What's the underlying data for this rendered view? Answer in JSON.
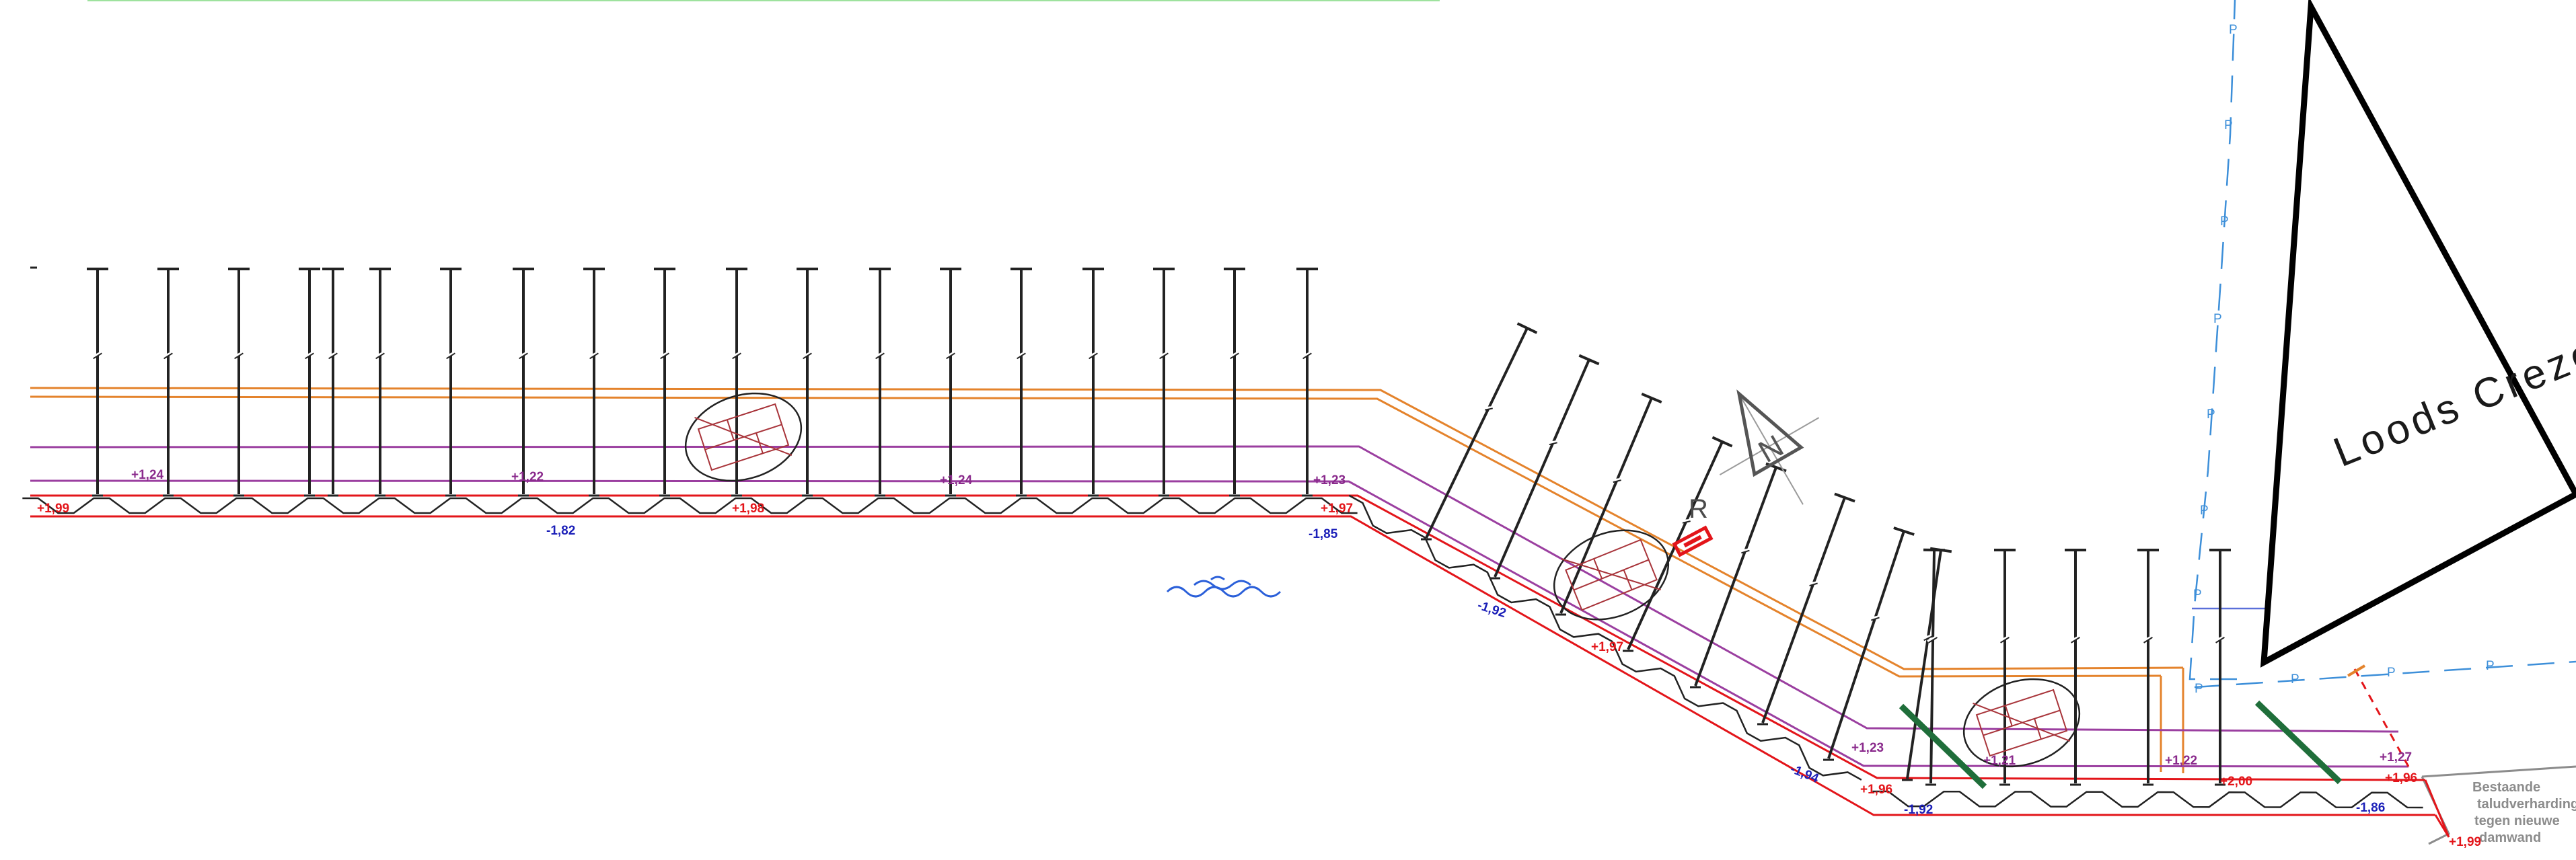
{
  "colors": {
    "sheet_pile": "#e3151a",
    "anchor": "#222222",
    "orange_line": "#e4832c",
    "purple_line": "#9b3fa0",
    "cable_line": "#3d8fd9",
    "building": "#000000",
    "green_strut": "#1f6e3a",
    "water_symbol": "#2a5fd9",
    "waler_detail": "#a8343a"
  },
  "icons": [
    "water-level-icon",
    "north-arrow-icon",
    "waler-detail-icon",
    "anchor-icon"
  ],
  "cable_marker": "P",
  "building_label": "Loods Crezee",
  "north_arrow": {
    "letter": "N",
    "mark": "R"
  },
  "note_lines": [
    "Bestaande",
    "taludverharding",
    "tegen nieuwe",
    "damwand"
  ],
  "levels": {
    "red": [
      "+1,99",
      "+1,98",
      "+1,97",
      "+1,97",
      "+1,96",
      "+2,00",
      "+1,96",
      "+1,99"
    ],
    "blue": [
      "-1,82",
      "-1,85",
      "-1,92",
      "-1,94",
      "-1,92",
      "-1,86"
    ],
    "purple": [
      "+1,24",
      "+1,22",
      "+1,24",
      "+1,23",
      "+1,23",
      "+1,21",
      "+1,22",
      "+1,27"
    ]
  }
}
